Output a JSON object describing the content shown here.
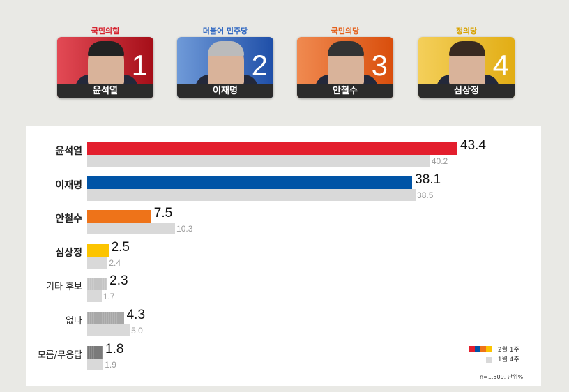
{
  "candidates": [
    {
      "party": "국민의힘",
      "name": "윤석열",
      "number": "1",
      "party_color": "#d6232f",
      "card_from": "#e34a55",
      "card_to": "#a50e18",
      "hair": "#222"
    },
    {
      "party": "더불어 민주당",
      "name": "이재명",
      "number": "2",
      "party_color": "#2f67c1",
      "card_from": "#6f9ad8",
      "card_to": "#1f4fa8",
      "hair": "#bbb"
    },
    {
      "party": "국민의당",
      "name": "안철수",
      "number": "3",
      "party_color": "#e4601b",
      "card_from": "#f08a50",
      "card_to": "#d94e0c",
      "hair": "#333"
    },
    {
      "party": "정의당",
      "name": "심상정",
      "number": "4",
      "party_color": "#d8a200",
      "card_from": "#f4cf5a",
      "card_to": "#e2ad14",
      "hair": "#3a2a20"
    }
  ],
  "chart_data": {
    "type": "bar",
    "orientation": "horizontal",
    "categories": [
      "윤석열",
      "이재명",
      "안철수",
      "심상정",
      "기타 후보",
      "없다",
      "모름/무응답"
    ],
    "series": [
      {
        "name": "2월 1주",
        "values": [
          43.4,
          38.1,
          7.5,
          2.5,
          2.3,
          4.3,
          1.8
        ],
        "colors": [
          "#e31e2d",
          "#0054a6",
          "#ee7319",
          "#fcc400",
          "#c4c4c4",
          "#a8a8a8",
          "#7a7a7a"
        ]
      },
      {
        "name": "1월 4주",
        "values": [
          40.2,
          38.5,
          10.3,
          2.4,
          1.7,
          5.0,
          1.9
        ],
        "color": "#d9d9d9"
      }
    ],
    "xlim": [
      0,
      45
    ],
    "grid": false,
    "legend": "bottom-right",
    "note": "n=1,509, 단위%"
  }
}
